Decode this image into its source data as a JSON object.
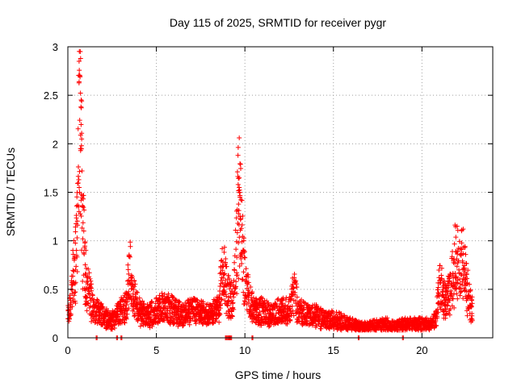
{
  "chart_data": {
    "type": "scatter",
    "title": "Day 115 of 2025, SRMTID for receiver pygr",
    "xlabel": "GPS time / hours",
    "ylabel": "SRMTID / TECUs",
    "xlim": [
      0,
      24
    ],
    "ylim": [
      0,
      3
    ],
    "xticks": [
      0,
      5,
      10,
      15,
      20
    ],
    "yticks": [
      0,
      0.5,
      1,
      1.5,
      2,
      2.5,
      3
    ],
    "xtick_labels": [
      "0",
      "5",
      "10",
      "15",
      "20"
    ],
    "ytick_labels": [
      "0",
      "0.5",
      "1",
      "1.5",
      "2",
      "2.5",
      "3"
    ],
    "grid": true,
    "marker": "+",
    "series": [
      {
        "name": "SRMTID",
        "color": "#ff0000",
        "anchors": [
          [
            0.0,
            0.25
          ],
          [
            0.1,
            0.3
          ],
          [
            0.2,
            0.55
          ],
          [
            0.3,
            0.7
          ],
          [
            0.4,
            0.75
          ],
          [
            0.5,
            1.2
          ],
          [
            0.55,
            1.5
          ],
          [
            0.6,
            2.4
          ],
          [
            0.65,
            2.7
          ],
          [
            0.7,
            2.95
          ],
          [
            0.75,
            2.0
          ],
          [
            0.8,
            1.6
          ],
          [
            0.9,
            1.0
          ],
          [
            1.0,
            0.7
          ],
          [
            1.2,
            0.5
          ],
          [
            1.5,
            0.3
          ],
          [
            2.0,
            0.25
          ],
          [
            2.5,
            0.2
          ],
          [
            3.0,
            0.3
          ],
          [
            3.3,
            0.35
          ],
          [
            3.5,
            0.8
          ],
          [
            3.6,
            0.5
          ],
          [
            4.0,
            0.3
          ],
          [
            4.5,
            0.25
          ],
          [
            5.0,
            0.3
          ],
          [
            5.5,
            0.35
          ],
          [
            6.0,
            0.3
          ],
          [
            6.5,
            0.25
          ],
          [
            7.0,
            0.3
          ],
          [
            7.5,
            0.28
          ],
          [
            8.0,
            0.25
          ],
          [
            8.5,
            0.35
          ],
          [
            8.8,
            0.8
          ],
          [
            9.0,
            0.5
          ],
          [
            9.3,
            0.4
          ],
          [
            9.5,
            0.9
          ],
          [
            9.65,
            1.55
          ],
          [
            9.8,
            1.2
          ],
          [
            10.0,
            0.6
          ],
          [
            10.3,
            0.4
          ],
          [
            10.5,
            0.3
          ],
          [
            11.0,
            0.3
          ],
          [
            11.5,
            0.25
          ],
          [
            12.0,
            0.3
          ],
          [
            12.5,
            0.3
          ],
          [
            12.8,
            0.55
          ],
          [
            13.0,
            0.3
          ],
          [
            13.5,
            0.25
          ],
          [
            14.0,
            0.25
          ],
          [
            14.5,
            0.2
          ],
          [
            15.0,
            0.2
          ],
          [
            15.5,
            0.18
          ],
          [
            16.0,
            0.15
          ],
          [
            16.5,
            0.12
          ],
          [
            17.0,
            0.12
          ],
          [
            17.5,
            0.14
          ],
          [
            18.0,
            0.15
          ],
          [
            18.5,
            0.12
          ],
          [
            19.0,
            0.15
          ],
          [
            19.5,
            0.15
          ],
          [
            20.0,
            0.15
          ],
          [
            20.5,
            0.15
          ],
          [
            20.8,
            0.2
          ],
          [
            21.0,
            0.6
          ],
          [
            21.3,
            0.4
          ],
          [
            21.6,
            0.5
          ],
          [
            21.9,
            0.9
          ],
          [
            22.1,
            0.75
          ],
          [
            22.3,
            0.85
          ],
          [
            22.5,
            0.6
          ],
          [
            22.7,
            0.4
          ],
          [
            22.8,
            0.35
          ]
        ],
        "zero_points": [
          1.6,
          2.75,
          3.0,
          8.9,
          9.0,
          9.1,
          9.2,
          10.4,
          16.4,
          18.9
        ],
        "spikes": [
          [
            0.7,
            2.95
          ],
          [
            0.72,
            2.88
          ],
          [
            0.68,
            2.7
          ],
          [
            0.69,
            2.69
          ],
          [
            0.74,
            2.38
          ],
          [
            0.76,
            2.37
          ],
          [
            0.78,
            2.05
          ],
          [
            0.77,
            1.98
          ],
          [
            0.72,
            1.93
          ],
          [
            0.8,
            1.72
          ],
          [
            0.62,
            1.63
          ],
          [
            0.64,
            1.55
          ],
          [
            0.66,
            1.5
          ],
          [
            0.75,
            1.48
          ],
          [
            0.6,
            1.35
          ],
          [
            0.63,
            1.3
          ],
          [
            9.62,
            1.58
          ],
          [
            9.68,
            1.55
          ],
          [
            9.7,
            1.5
          ],
          [
            9.72,
            1.45
          ],
          [
            9.64,
            1.28
          ],
          [
            9.75,
            1.22
          ],
          [
            9.6,
            1.18
          ]
        ]
      }
    ]
  }
}
